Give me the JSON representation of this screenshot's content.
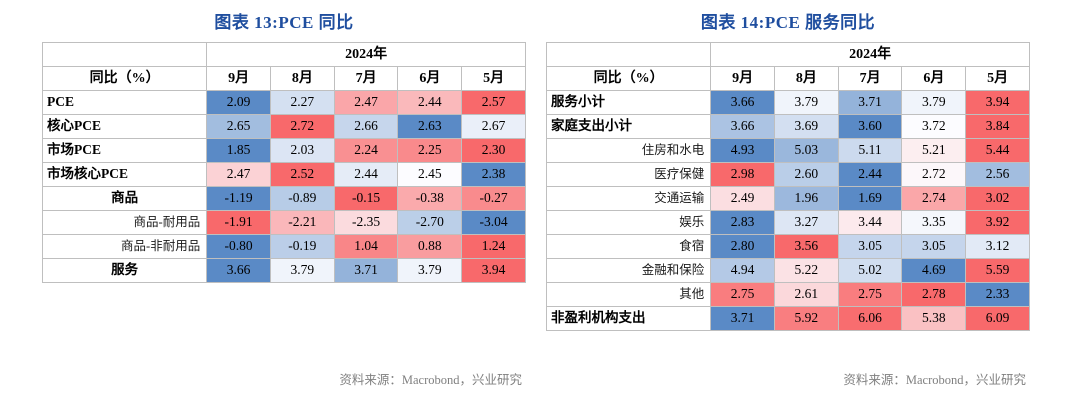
{
  "colors": {
    "title": "#1F4E9F",
    "source_text": "#808080",
    "table_border": "#BFBFBF",
    "heat": {
      "min": "#5A8AC6",
      "mid": "#FCFCFF",
      "max": "#F8696B"
    }
  },
  "chart_data": [
    {
      "type": "heatmap",
      "title": "图表 13:PCE 同比",
      "year_header": "2024年",
      "metric_header": "同比（%）",
      "columns": [
        "9月",
        "8月",
        "7月",
        "6月",
        "5月"
      ],
      "rows": [
        {
          "label": "PCE",
          "bold": true,
          "align": "left",
          "values": [
            2.09,
            2.27,
            2.47,
            2.44,
            2.57
          ]
        },
        {
          "label": "核心PCE",
          "bold": true,
          "align": "left",
          "values": [
            2.65,
            2.72,
            2.66,
            2.63,
            2.67
          ]
        },
        {
          "label": "市场PCE",
          "bold": true,
          "align": "left",
          "values": [
            1.85,
            2.03,
            2.24,
            2.25,
            2.3
          ]
        },
        {
          "label": "市场核心PCE",
          "bold": true,
          "align": "left",
          "values": [
            2.47,
            2.52,
            2.44,
            2.45,
            2.38
          ]
        },
        {
          "label": "商品",
          "bold": true,
          "align": "center",
          "values": [
            -1.19,
            -0.89,
            -0.15,
            -0.38,
            -0.27
          ]
        },
        {
          "label": "商品-耐用品",
          "bold": false,
          "align": "right",
          "values": [
            -1.91,
            -2.21,
            -2.35,
            -2.7,
            -3.04
          ]
        },
        {
          "label": "商品-非耐用品",
          "bold": false,
          "align": "right",
          "values": [
            -0.8,
            -0.19,
            1.04,
            0.88,
            1.24
          ]
        },
        {
          "label": "服务",
          "bold": true,
          "align": "center",
          "values": [
            3.66,
            3.79,
            3.71,
            3.79,
            3.94
          ]
        }
      ],
      "source": "资料来源：Macrobond，兴业研究"
    },
    {
      "type": "heatmap",
      "title": "图表 14:PCE 服务同比",
      "year_header": "2024年",
      "metric_header": "同比（%）",
      "columns": [
        "9月",
        "8月",
        "7月",
        "6月",
        "5月"
      ],
      "rows": [
        {
          "label": "服务小计",
          "bold": true,
          "align": "left",
          "values": [
            3.66,
            3.79,
            3.71,
            3.79,
            3.94
          ]
        },
        {
          "label": "家庭支出小计",
          "bold": true,
          "align": "left",
          "values": [
            3.66,
            3.69,
            3.6,
            3.72,
            3.84
          ]
        },
        {
          "label": "住房和水电",
          "bold": false,
          "align": "right",
          "values": [
            4.93,
            5.03,
            5.11,
            5.21,
            5.44
          ]
        },
        {
          "label": "医疗保健",
          "bold": false,
          "align": "right",
          "values": [
            2.98,
            2.6,
            2.44,
            2.72,
            2.56
          ]
        },
        {
          "label": "交通运输",
          "bold": false,
          "align": "right",
          "values": [
            2.49,
            1.96,
            1.69,
            2.74,
            3.02
          ]
        },
        {
          "label": "娱乐",
          "bold": false,
          "align": "right",
          "values": [
            2.83,
            3.27,
            3.44,
            3.35,
            3.92
          ]
        },
        {
          "label": "食宿",
          "bold": false,
          "align": "right",
          "values": [
            2.8,
            3.56,
            3.05,
            3.05,
            3.12
          ]
        },
        {
          "label": "金融和保险",
          "bold": false,
          "align": "right",
          "values": [
            4.94,
            5.22,
            5.02,
            4.69,
            5.59
          ]
        },
        {
          "label": "其他",
          "bold": false,
          "align": "right",
          "values": [
            2.75,
            2.61,
            2.75,
            2.78,
            2.33
          ]
        },
        {
          "label": "非盈利机构支出",
          "bold": true,
          "align": "left",
          "values": [
            3.71,
            5.92,
            6.06,
            5.38,
            6.09
          ]
        }
      ],
      "source": "资料来源：Macrobond，兴业研究"
    }
  ]
}
